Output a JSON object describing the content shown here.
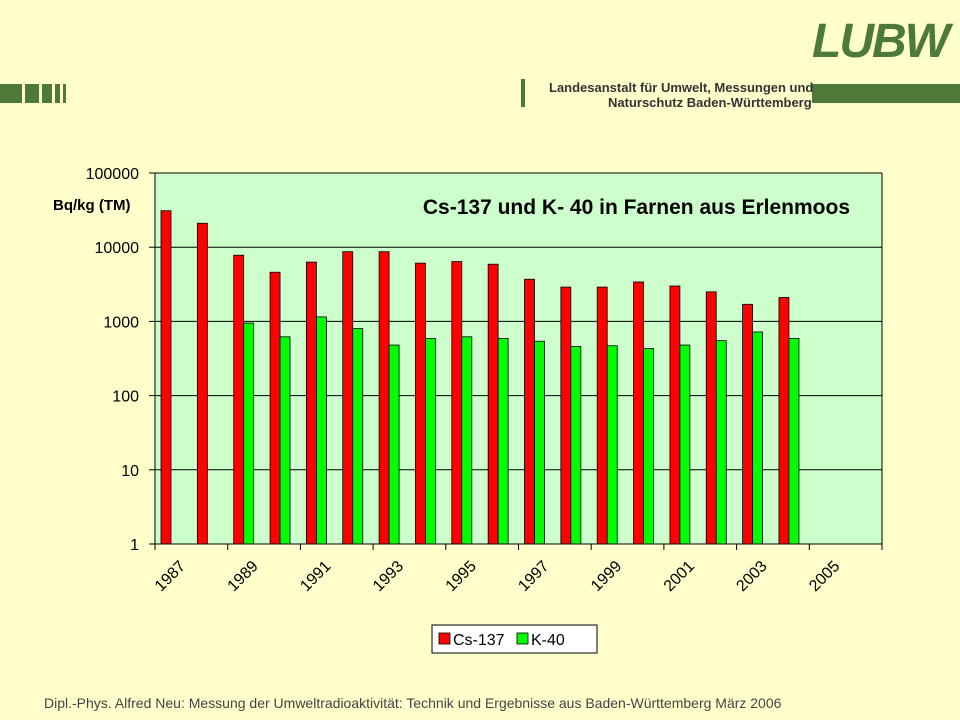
{
  "header": {
    "logo": "LUBW",
    "org_line1": "Landesanstalt für Umwelt, Messungen und",
    "org_line2": "Naturschutz Baden-Württemberg",
    "brand_color": "#4d7a38"
  },
  "footer": {
    "text": "Dipl.-Phys. Alfred Neu:   Messung der Umweltradioaktivität: Technik und Ergebnisse aus Baden-Württemberg März 2006"
  },
  "chart_data": {
    "type": "bar",
    "title": "Cs-137 und K- 40 in Farnen aus Erlenmoos",
    "ylabel": "Bq/kg (TM)",
    "xlabel": "",
    "yscale": "log",
    "ylim": [
      1,
      100000
    ],
    "yticks": [
      "1",
      "10",
      "100",
      "1000",
      "10000",
      "100000"
    ],
    "grid": true,
    "legend_position": "bottom",
    "categories": [
      "1987",
      "1988",
      "1989",
      "1990",
      "1991",
      "1992",
      "1993",
      "1994",
      "1995",
      "1996",
      "1997",
      "1998",
      "1999",
      "2000",
      "2001",
      "2002",
      "2003",
      "2004",
      "2005",
      "2006"
    ],
    "xtick_labels": [
      "1987",
      "1989",
      "1991",
      "1993",
      "1995",
      "1997",
      "1999",
      "2001",
      "2003",
      "2005"
    ],
    "series": [
      {
        "name": "Cs-137",
        "color": "#ff0000",
        "values": [
          31000,
          21000,
          7800,
          4600,
          6300,
          8700,
          8700,
          6100,
          6400,
          5900,
          3700,
          2900,
          2900,
          3400,
          3000,
          2500,
          1700,
          2100,
          null,
          null
        ]
      },
      {
        "name": "K-40",
        "color": "#00ff00",
        "values": [
          null,
          null,
          950,
          620,
          1150,
          800,
          480,
          590,
          620,
          590,
          540,
          460,
          470,
          430,
          480,
          550,
          720,
          590,
          null,
          null
        ]
      }
    ],
    "plot_background": "#ccffcc"
  }
}
